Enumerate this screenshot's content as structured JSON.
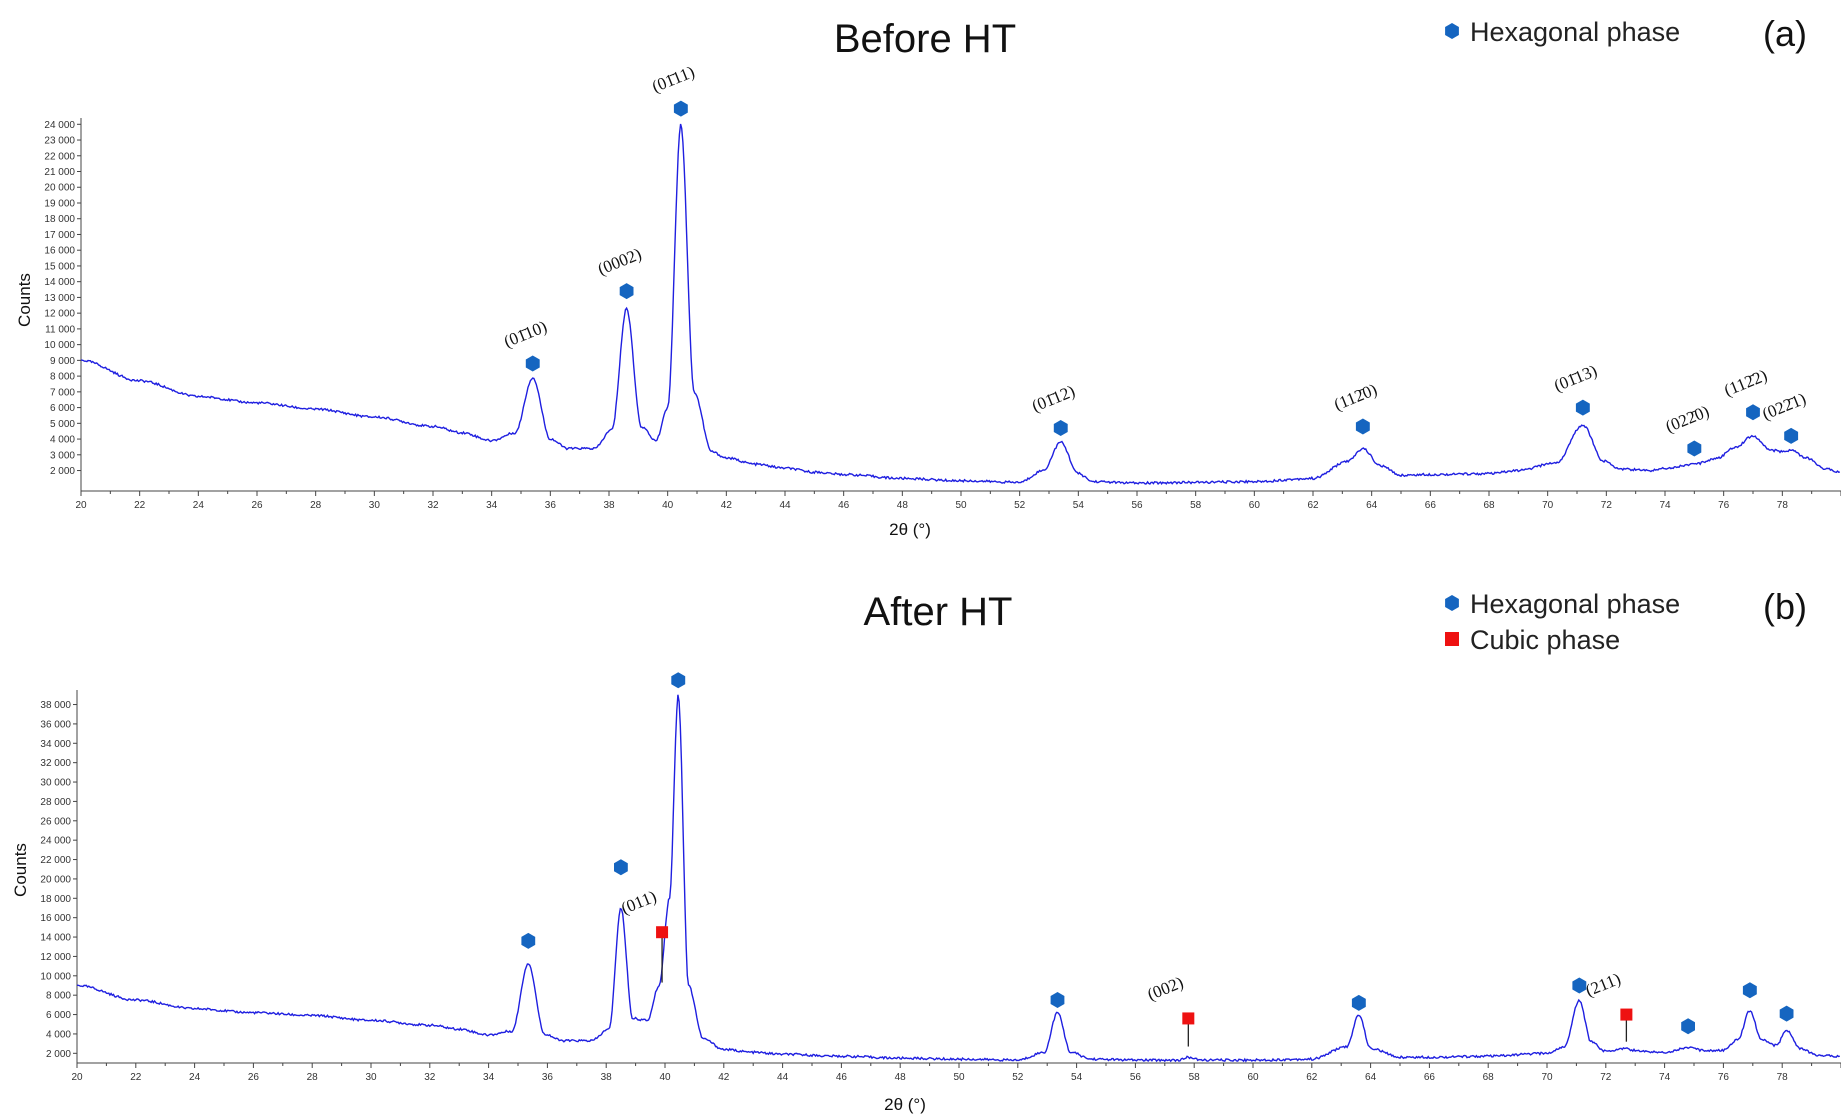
{
  "colors": {
    "trace": "#1f1fe0",
    "hexagonal": "#1565c0",
    "cubic": "#ee1111"
  },
  "chart_data": [
    {
      "type": "line",
      "panel_label": "(a)",
      "title": "Before HT",
      "xlabel": "2θ (°)",
      "ylabel": "Counts",
      "xlim": [
        20,
        80
      ],
      "ylim": [
        700,
        24400
      ],
      "x_ticks": [
        20,
        22,
        24,
        26,
        28,
        30,
        32,
        34,
        36,
        38,
        40,
        42,
        44,
        46,
        48,
        50,
        52,
        54,
        56,
        58,
        60,
        62,
        64,
        66,
        68,
        70,
        72,
        74,
        76,
        78
      ],
      "y_ticks": [
        2000,
        3000,
        4000,
        5000,
        6000,
        7000,
        8000,
        9000,
        10000,
        11000,
        12000,
        13000,
        14000,
        15000,
        16000,
        17000,
        18000,
        19000,
        20000,
        21000,
        22000,
        23000,
        24000
      ],
      "y_tick_labels": [
        "2 000",
        "3 000",
        "4 000",
        "5 000",
        "6 000",
        "7 000",
        "8 000",
        "9 000",
        "10 000",
        "11 000",
        "12 000",
        "13 000",
        "14 000",
        "15 000",
        "16 000",
        "17 000",
        "18 000",
        "19 000",
        "20 000",
        "21 000",
        "22 000",
        "23 000",
        "24 000"
      ],
      "legend": [
        {
          "marker": "hexagon",
          "label": "Hexagonal phase"
        }
      ],
      "series": [
        {
          "x": [
            20,
            22,
            24,
            26,
            28,
            30,
            32,
            33,
            34,
            34.8,
            35.4,
            36,
            36.6,
            37.5,
            38.1,
            38.6,
            39.1,
            39.6,
            40.0,
            40.45,
            40.9,
            41.5,
            42,
            43,
            44,
            45,
            46,
            48,
            50,
            52,
            52.8,
            53.4,
            54,
            54.5,
            56,
            58,
            60,
            62,
            63.2,
            63.7,
            64.3,
            65,
            66,
            68,
            69,
            70.3,
            71.2,
            71.9,
            72.5,
            73.5,
            74,
            75,
            75.8,
            76.4,
            77.0,
            77.6,
            78.0,
            78.3,
            78.8,
            79.5,
            80
          ],
          "y": [
            9000,
            7700,
            6700,
            6300,
            5900,
            5400,
            4800,
            4400,
            3900,
            4400,
            7900,
            4000,
            3400,
            3400,
            4600,
            12300,
            4800,
            3900,
            6000,
            24000,
            7000,
            3200,
            2800,
            2400,
            2150,
            1900,
            1750,
            1500,
            1350,
            1250,
            2000,
            3800,
            1800,
            1300,
            1200,
            1250,
            1300,
            1500,
            2600,
            3400,
            2300,
            1700,
            1750,
            1800,
            2000,
            2500,
            4900,
            2600,
            2100,
            2000,
            2150,
            2400,
            2800,
            3500,
            4200,
            3300,
            3200,
            3300,
            2800,
            2100,
            1900
          ]
        }
      ],
      "markers": [
        {
          "phase": "hexagonal",
          "x": 35.4,
          "y": 8800,
          "label": "(01̄10)"
        },
        {
          "phase": "hexagonal",
          "x": 38.6,
          "y": 13400,
          "label": "(0002)"
        },
        {
          "phase": "hexagonal",
          "x": 40.45,
          "y": 25000,
          "label": "(01̄11)"
        },
        {
          "phase": "hexagonal",
          "x": 53.4,
          "y": 4700,
          "label": "(01̄12)"
        },
        {
          "phase": "hexagonal",
          "x": 63.7,
          "y": 4800,
          "label": "(112̄0)"
        },
        {
          "phase": "hexagonal",
          "x": 71.2,
          "y": 6000,
          "label": "(01̄13)"
        },
        {
          "phase": "hexagonal",
          "x": 75.0,
          "y": 3400,
          "label": "(022̄0)"
        },
        {
          "phase": "hexagonal",
          "x": 77.0,
          "y": 5700,
          "label": "(112̄2)"
        },
        {
          "phase": "hexagonal",
          "x": 78.3,
          "y": 4200,
          "label": "(022̄1)"
        }
      ]
    },
    {
      "type": "line",
      "panel_label": "(b)",
      "title": "After HT",
      "xlabel": "2θ (°)",
      "ylabel": "Counts",
      "xlim": [
        20,
        80
      ],
      "ylim": [
        1000,
        39500
      ],
      "x_ticks": [
        20,
        22,
        24,
        26,
        28,
        30,
        32,
        34,
        36,
        38,
        40,
        42,
        44,
        46,
        48,
        50,
        52,
        54,
        56,
        58,
        60,
        62,
        64,
        66,
        68,
        70,
        72,
        74,
        76,
        78
      ],
      "y_ticks": [
        2000,
        4000,
        6000,
        8000,
        10000,
        12000,
        14000,
        16000,
        18000,
        20000,
        22000,
        24000,
        26000,
        28000,
        30000,
        32000,
        34000,
        36000,
        38000
      ],
      "y_tick_labels": [
        "2 000",
        "4 000",
        "6 000",
        "8 000",
        "10 000",
        "12 000",
        "14 000",
        "16 000",
        "18 000",
        "20 000",
        "22 000",
        "24 000",
        "26 000",
        "28 000",
        "30 000",
        "32 000",
        "34 000",
        "36 000",
        "38 000"
      ],
      "legend": [
        {
          "marker": "hexagon",
          "label": "Hexagonal phase"
        },
        {
          "marker": "square",
          "label": "Cubic phase"
        }
      ],
      "series": [
        {
          "x": [
            20,
            22,
            24,
            26,
            28,
            30,
            32,
            33,
            34,
            34.8,
            35.35,
            35.9,
            36.5,
            37.5,
            38.1,
            38.5,
            38.9,
            39.4,
            39.8,
            40.15,
            40.45,
            40.8,
            41.3,
            42,
            43,
            44,
            46,
            48,
            50,
            52,
            52.9,
            53.35,
            53.8,
            54.5,
            56,
            57.5,
            57.8,
            58.2,
            60,
            62,
            63.2,
            63.6,
            64.0,
            65,
            66,
            68,
            70,
            70.6,
            71.1,
            71.5,
            72,
            72.6,
            73.2,
            74,
            74.8,
            75.3,
            76,
            76.5,
            76.9,
            77.3,
            77.8,
            78.15,
            78.6,
            79.2,
            80
          ],
          "y": [
            9000,
            7500,
            6600,
            6200,
            5900,
            5400,
            4900,
            4500,
            3900,
            4300,
            11300,
            4000,
            3300,
            3300,
            4500,
            17000,
            5600,
            5400,
            9000,
            18000,
            39000,
            9000,
            3500,
            2400,
            2100,
            1900,
            1700,
            1500,
            1400,
            1300,
            2100,
            6200,
            2100,
            1400,
            1300,
            1300,
            1600,
            1300,
            1300,
            1400,
            2700,
            6000,
            2500,
            1600,
            1600,
            1700,
            2000,
            2700,
            7500,
            3200,
            2200,
            2500,
            2200,
            2100,
            2600,
            2300,
            2300,
            3500,
            6400,
            3400,
            2800,
            4400,
            2500,
            1800,
            1700
          ]
        }
      ],
      "markers": [
        {
          "phase": "hexagonal",
          "x": 35.35,
          "y": 13600,
          "label": ""
        },
        {
          "phase": "hexagonal",
          "x": 38.5,
          "y": 21200,
          "label": ""
        },
        {
          "phase": "hexagonal",
          "x": 40.45,
          "y": 40500,
          "label": ""
        },
        {
          "phase": "hexagonal",
          "x": 53.35,
          "y": 7500,
          "label": ""
        },
        {
          "phase": "hexagonal",
          "x": 63.6,
          "y": 7200,
          "label": ""
        },
        {
          "phase": "hexagonal",
          "x": 71.1,
          "y": 9000,
          "label": ""
        },
        {
          "phase": "hexagonal",
          "x": 74.8,
          "y": 4800,
          "label": ""
        },
        {
          "phase": "hexagonal",
          "x": 76.9,
          "y": 8500,
          "label": ""
        },
        {
          "phase": "hexagonal",
          "x": 78.15,
          "y": 6100,
          "label": ""
        },
        {
          "phase": "cubic",
          "x": 39.9,
          "y": 14500,
          "stem_to": 9300,
          "label": "(011)"
        },
        {
          "phase": "cubic",
          "x": 57.8,
          "y": 5600,
          "stem_to": 2700,
          "label": "(002)"
        },
        {
          "phase": "cubic",
          "x": 72.7,
          "y": 6000,
          "stem_to": 3200,
          "label": "(211)"
        }
      ]
    }
  ]
}
